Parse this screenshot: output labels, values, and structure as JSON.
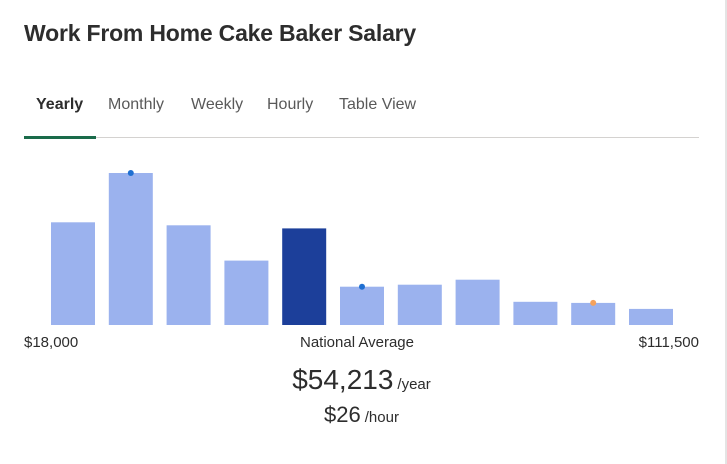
{
  "title": "Work From Home Cake Baker Salary",
  "tabs": [
    {
      "label": "Yearly",
      "active": true
    },
    {
      "label": "Monthly",
      "active": false
    },
    {
      "label": "Weekly",
      "active": false
    },
    {
      "label": "Hourly",
      "active": false
    },
    {
      "label": "Table View",
      "active": false
    }
  ],
  "chart_data": {
    "type": "bar",
    "xlabel": "",
    "ylabel": "",
    "x_range_labels": [
      "$18,000",
      "$111,500"
    ],
    "center_label": "National Average",
    "values": [
      102,
      151,
      99,
      64,
      96,
      38,
      40,
      45,
      23,
      22,
      16
    ],
    "highlight_index": 4,
    "markers": [
      {
        "bar": 1,
        "color": "#1f6fd1"
      },
      {
        "bar": 5,
        "color": "#1f6fd1"
      },
      {
        "bar": 9,
        "color": "#f5a25d"
      }
    ],
    "ylim": [
      0,
      151
    ],
    "grid": false,
    "colors": {
      "bar": "#9bb2ee",
      "highlight": "#1c3f9a"
    }
  },
  "average": {
    "yearly": "$54,213",
    "yearly_unit": "/year",
    "hourly": "$26",
    "hourly_unit": "/hour"
  }
}
